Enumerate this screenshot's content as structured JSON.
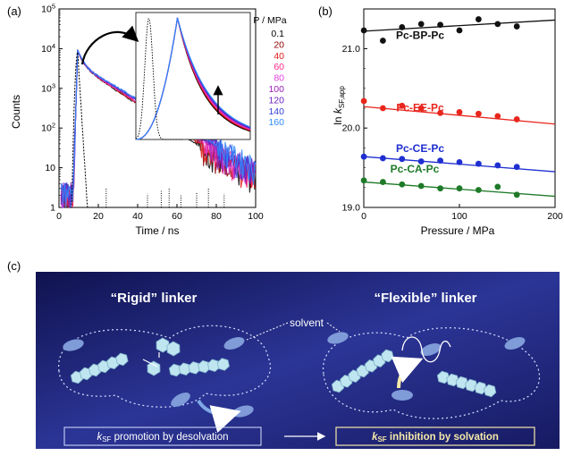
{
  "panel_labels": {
    "a": "(a)",
    "b": "(b)",
    "c": "(c)"
  },
  "chart_data": [
    {
      "type": "line",
      "panel": "(a)",
      "xlabel": "Time / ns",
      "ylabel": "Counts",
      "xlim": [
        0,
        100
      ],
      "ylim": [
        1,
        100000
      ],
      "yscale": "log",
      "xticks": [
        "0",
        "20",
        "40",
        "60",
        "80",
        "100"
      ],
      "yticks": [
        "1",
        "10",
        "10^2",
        "10^3",
        "10^4",
        "10^5"
      ],
      "legend_title": "P / MPa",
      "legend_placement": "top-right",
      "series": [
        {
          "name": "0.1",
          "color": "#000000"
        },
        {
          "name": "20",
          "color": "#8b0000"
        },
        {
          "name": "40",
          "color": "#e0201b"
        },
        {
          "name": "60",
          "color": "#ff2a8a"
        },
        {
          "name": "80",
          "color": "#e040e0"
        },
        {
          "name": "100",
          "color": "#9b1fb5"
        },
        {
          "name": "120",
          "color": "#6a1fc0"
        },
        {
          "name": "140",
          "color": "#3540d8"
        },
        {
          "name": "160",
          "color": "#2f8cff"
        }
      ],
      "peak": {
        "x": 9.5,
        "y": 9000
      },
      "irf_color": "#000000"
    },
    {
      "type": "scatter",
      "panel": "(b)",
      "xlabel": "Pressure / MPa",
      "ylabel": "ln k_SF,app",
      "xlim": [
        0,
        200
      ],
      "ylim": [
        19.0,
        21.5
      ],
      "xticks": [
        "0",
        "100",
        "200"
      ],
      "yticks": [
        "19.0",
        "20.0",
        "21.0"
      ],
      "series": [
        {
          "name": "Pc-BP-Pc",
          "color": "#111111",
          "x": [
            0.1,
            20,
            40,
            60,
            80,
            100,
            120,
            140,
            160
          ],
          "y": [
            21.23,
            21.1,
            21.27,
            21.31,
            21.3,
            21.23,
            21.37,
            21.31,
            21.28
          ],
          "fit": [
            21.22,
            21.36
          ]
        },
        {
          "name": "Pc-EE-Pc",
          "color": "#e8261d",
          "x": [
            0.1,
            20,
            40,
            60,
            80,
            100,
            120,
            140,
            160
          ],
          "y": [
            20.34,
            20.25,
            20.28,
            20.25,
            20.19,
            20.2,
            20.18,
            20.15,
            20.11
          ],
          "fit": [
            20.27,
            20.05
          ]
        },
        {
          "name": "Pc-CE-Pc",
          "color": "#1f2fd0",
          "x": [
            0.1,
            20,
            40,
            60,
            80,
            100,
            120,
            140,
            160
          ],
          "y": [
            19.64,
            19.62,
            19.61,
            19.58,
            19.59,
            19.57,
            19.55,
            19.53,
            19.51
          ],
          "fit": [
            19.64,
            19.45
          ]
        },
        {
          "name": "Pc-CA-Pc",
          "color": "#1e7a28",
          "x": [
            0.1,
            20,
            40,
            60,
            80,
            100,
            120,
            140,
            160
          ],
          "y": [
            19.34,
            19.32,
            19.29,
            19.27,
            19.24,
            19.24,
            19.22,
            19.26,
            19.16
          ],
          "fit": [
            19.32,
            19.14
          ]
        }
      ]
    }
  ],
  "panel_c": {
    "rigid_title": "“Rigid” linker",
    "flexible_title": "“Flexible” linker",
    "solvent_label": "solvent",
    "promotion_k": "k",
    "promotion_sub": "SF",
    "promotion_text": " promotion  by desolvation",
    "inhibition_k": "k",
    "inhibition_sub": "SF",
    "inhibition_text": " inhibition by solvation",
    "colors": {
      "bg_dark": "#10124f",
      "bg_light": "#2b3596",
      "molecule": "#bfe6f0",
      "solvent": "#7f9bd8",
      "highlight": "#f5e9a8"
    }
  }
}
